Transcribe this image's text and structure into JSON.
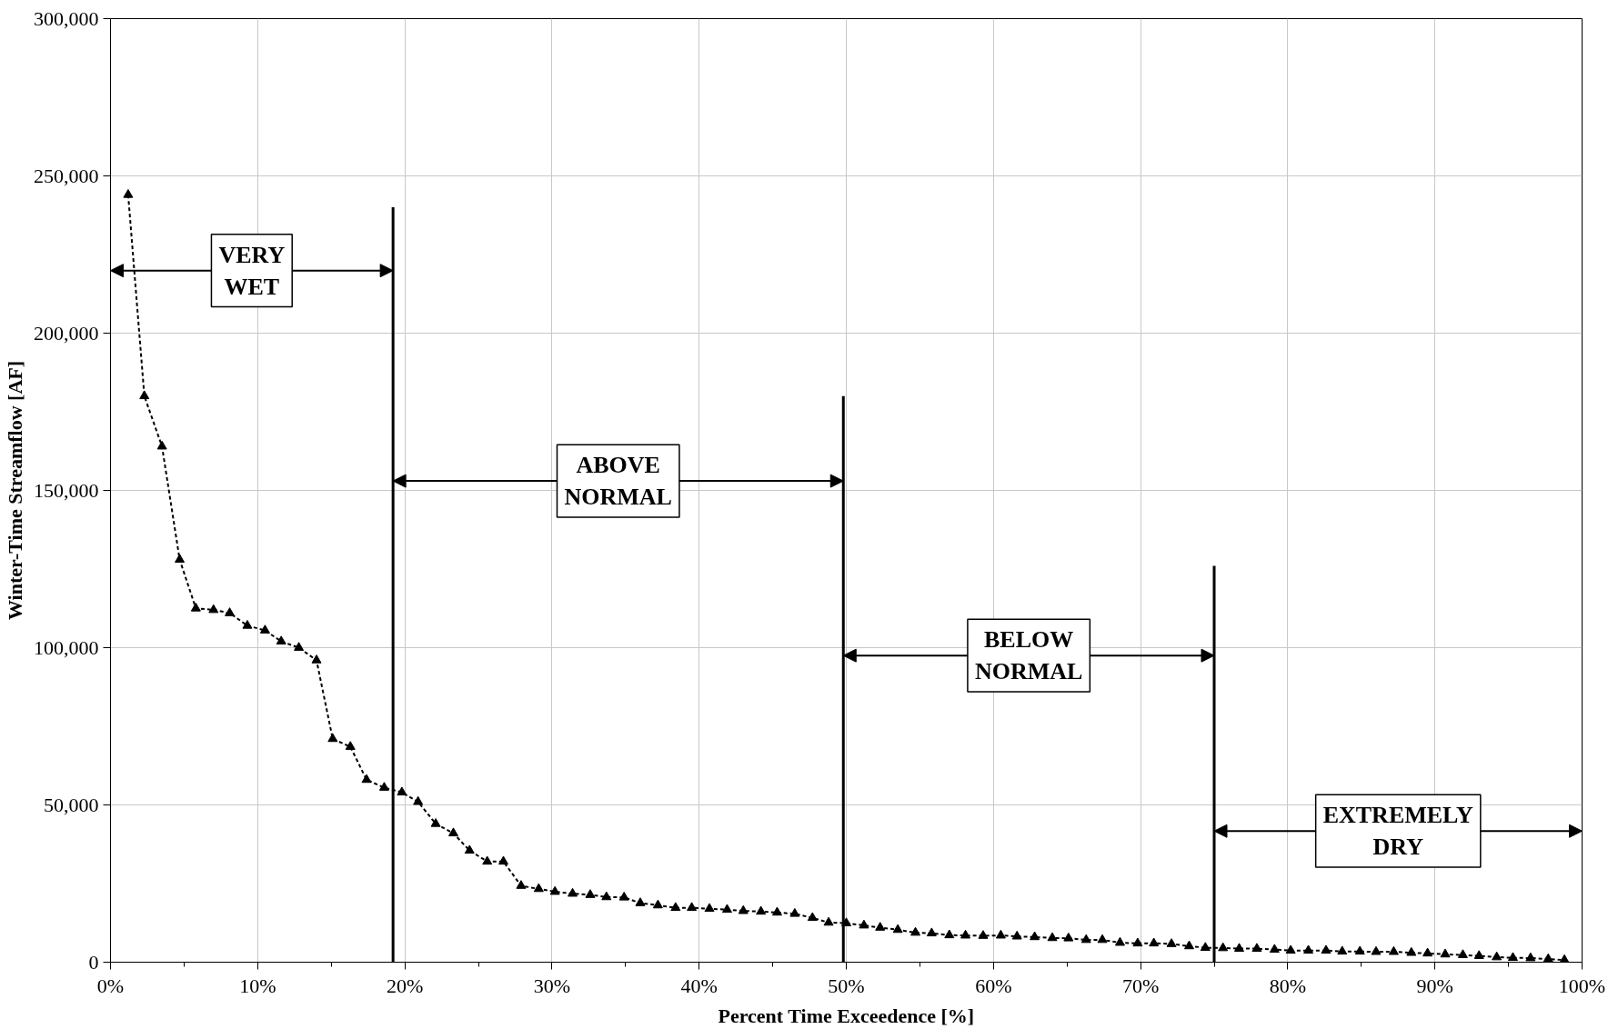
{
  "chart_data": {
    "type": "line",
    "xlabel": "Percent Time Exceedence [%]",
    "ylabel": "Winter-Time Streamflow [AF]",
    "xlim": [
      0,
      100
    ],
    "ylim": [
      0,
      300000
    ],
    "xticks": [
      {
        "value": 0,
        "label": "0%"
      },
      {
        "value": 5,
        "label": null
      },
      {
        "value": 10,
        "label": "10%"
      },
      {
        "value": 15,
        "label": null
      },
      {
        "value": 20,
        "label": "20%"
      },
      {
        "value": 25,
        "label": null
      },
      {
        "value": 30,
        "label": "30%"
      },
      {
        "value": 35,
        "label": null
      },
      {
        "value": 40,
        "label": "40%"
      },
      {
        "value": 45,
        "label": null
      },
      {
        "value": 50,
        "label": "50%"
      },
      {
        "value": 55,
        "label": null
      },
      {
        "value": 60,
        "label": "60%"
      },
      {
        "value": 65,
        "label": null
      },
      {
        "value": 70,
        "label": "70%"
      },
      {
        "value": 75,
        "label": null
      },
      {
        "value": 80,
        "label": "80%"
      },
      {
        "value": 85,
        "label": null
      },
      {
        "value": 90,
        "label": "90%"
      },
      {
        "value": 95,
        "label": null
      },
      {
        "value": 100,
        "label": "100%"
      }
    ],
    "yticks": [
      {
        "value": 0,
        "label": "0"
      },
      {
        "value": 50000,
        "label": "50,000"
      },
      {
        "value": 100000,
        "label": "100,000"
      },
      {
        "value": 150000,
        "label": "150,000"
      },
      {
        "value": 200000,
        "label": "200,000"
      },
      {
        "value": 250000,
        "label": "250,000"
      },
      {
        "value": 300000,
        "label": "300,000"
      }
    ],
    "grid": true,
    "series": [
      {
        "color": "#000000",
        "marker": "triangle",
        "line_style": "dashed",
        "x": [
          1.2,
          2.3,
          3.5,
          4.7,
          5.8,
          7.0,
          8.1,
          9.3,
          10.5,
          11.6,
          12.8,
          14.0,
          15.1,
          16.3,
          17.4,
          18.6,
          19.8,
          20.9,
          22.1,
          23.3,
          24.4,
          25.6,
          26.7,
          27.9,
          29.1,
          30.2,
          31.4,
          32.6,
          33.7,
          34.9,
          36.0,
          37.2,
          38.4,
          39.5,
          40.7,
          41.9,
          43.0,
          44.2,
          45.3,
          46.5,
          47.7,
          48.8,
          50.0,
          51.2,
          52.3,
          53.5,
          54.7,
          55.8,
          57.0,
          58.1,
          59.3,
          60.5,
          61.6,
          62.8,
          64.0,
          65.1,
          66.3,
          67.4,
          68.6,
          69.8,
          70.9,
          72.1,
          73.3,
          74.4,
          75.6,
          76.7,
          77.9,
          79.1,
          80.2,
          81.4,
          82.6,
          83.7,
          84.9,
          86.0,
          87.2,
          88.4,
          89.5,
          90.7,
          91.9,
          93.0,
          94.2,
          95.3,
          96.5,
          97.7,
          98.8
        ],
        "values": [
          244000,
          180000,
          164000,
          128000,
          112500,
          112000,
          111000,
          107000,
          105500,
          102000,
          100000,
          96000,
          71000,
          68500,
          58000,
          55500,
          54000,
          51000,
          44000,
          41000,
          35500,
          32000,
          32000,
          24300,
          23300,
          22400,
          21800,
          21400,
          20700,
          20600,
          18800,
          18100,
          17300,
          17300,
          17000,
          16700,
          16300,
          16100,
          15800,
          15400,
          14100,
          12600,
          12400,
          11700,
          11000,
          10300,
          9400,
          9200,
          8600,
          8500,
          8400,
          8500,
          8200,
          8000,
          7700,
          7600,
          7100,
          7100,
          6200,
          6000,
          6000,
          5800,
          5100,
          4600,
          4500,
          4300,
          4300,
          4000,
          3700,
          3700,
          3700,
          3400,
          3400,
          3300,
          3300,
          3000,
          2800,
          2500,
          2300,
          2000,
          1600,
          1400,
          1300,
          1000,
          700
        ]
      },
      {
        "type": "line",
        "color": "#000000",
        "marker": "none",
        "line_style": "solid",
        "x": [
          19.2,
          19.2
        ],
        "values": [
          0,
          240000
        ]
      },
      {
        "type": "line",
        "color": "#000000",
        "marker": "none",
        "line_style": "solid",
        "x": [
          49.8,
          49.8
        ],
        "values": [
          0,
          180000
        ]
      },
      {
        "type": "line",
        "color": "#000000",
        "marker": "none",
        "line_style": "solid",
        "x": [
          75.0,
          75.0
        ],
        "values": [
          0,
          126000
        ]
      }
    ],
    "annotations": [
      "VERY\nWET",
      "ABOVE\nNORMAL",
      "BELOW\nNORMAL",
      "EXTREMELY\nDRY"
    ]
  }
}
